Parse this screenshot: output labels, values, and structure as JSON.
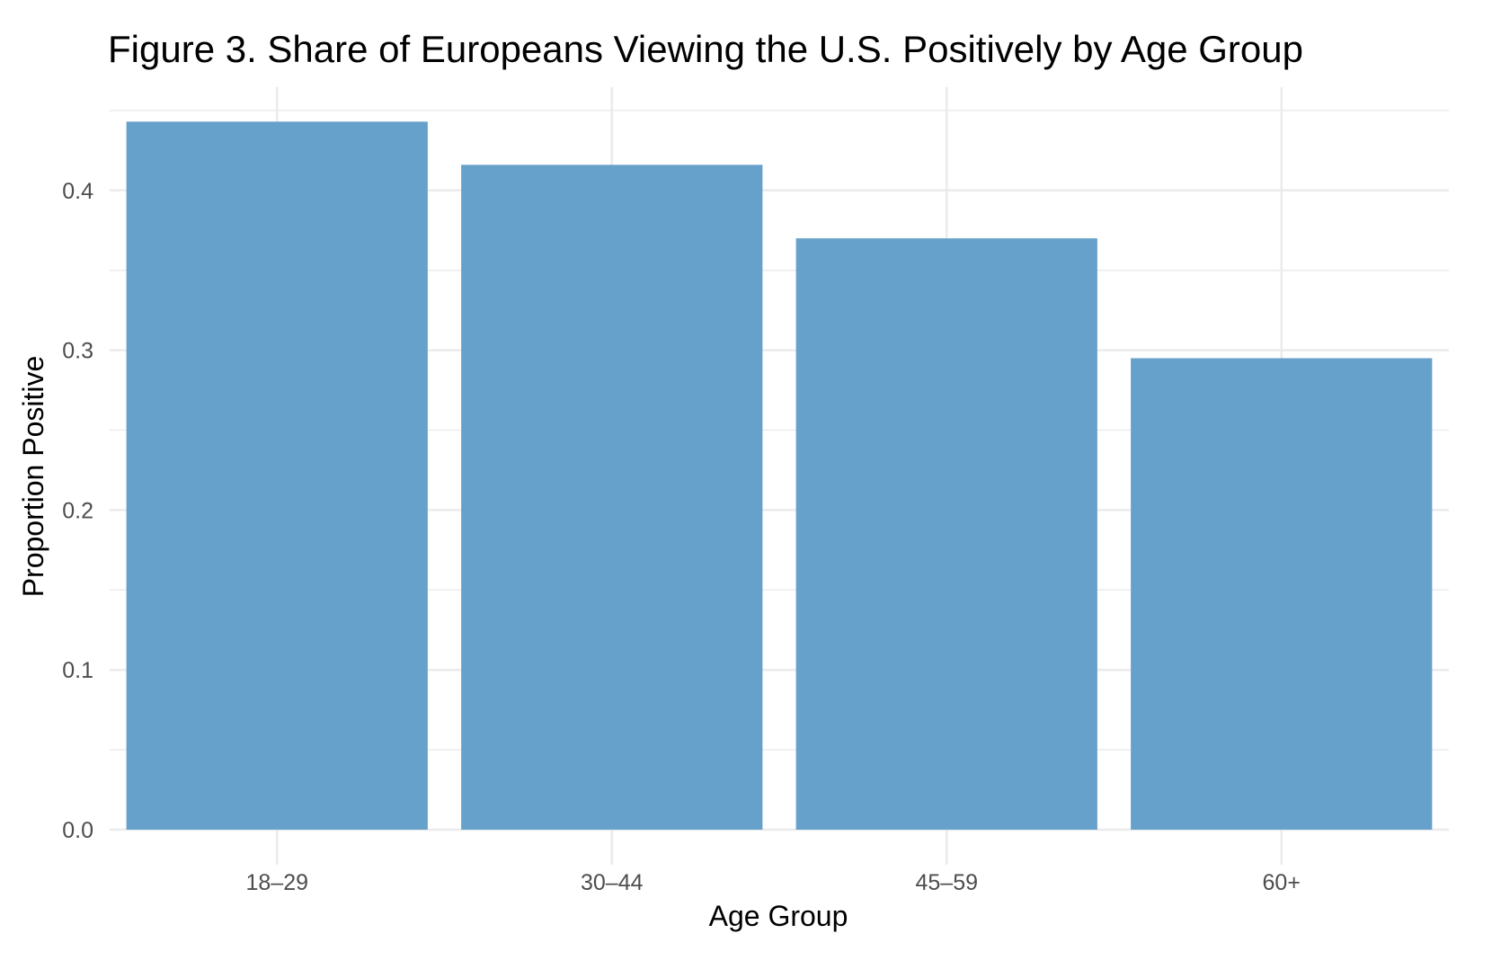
{
  "chart_data": {
    "type": "bar",
    "title": "Figure 3. Share of Europeans Viewing the U.S. Positively by Age Group",
    "xlabel": "Age Group",
    "ylabel": "Proportion Positive",
    "categories": [
      "18–29",
      "30–44",
      "45–59",
      "60+"
    ],
    "values": [
      0.443,
      0.416,
      0.37,
      0.295
    ],
    "ylim": [
      0,
      0.45
    ],
    "yticks": [
      0.0,
      0.1,
      0.2,
      0.3,
      0.4
    ],
    "ytick_labels": [
      "0.0",
      "0.1",
      "0.2",
      "0.3",
      "0.4"
    ],
    "grid": true,
    "legend": "none",
    "colors": {
      "bar": "#66a1cb",
      "grid": "#ebebeb",
      "tick_text": "#4d4d4d",
      "title_text": "#000000"
    }
  }
}
